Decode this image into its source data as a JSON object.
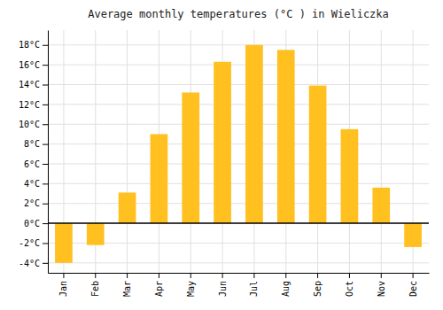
{
  "chart_data": {
    "type": "bar",
    "title": "Average monthly temperatures (°C ) in Wieliczka",
    "categories": [
      "Jan",
      "Feb",
      "Mar",
      "Apr",
      "May",
      "Jun",
      "Jul",
      "Aug",
      "Sep",
      "Oct",
      "Nov",
      "Dec"
    ],
    "values": [
      -4.0,
      -2.2,
      3.1,
      9.0,
      13.2,
      16.3,
      18.0,
      17.5,
      13.9,
      9.5,
      3.6,
      -2.4
    ],
    "color": "#FFC020",
    "ylim": [
      -5,
      19.5
    ],
    "yticks": [
      {
        "value": -4,
        "label": "-4°C"
      },
      {
        "value": -2,
        "label": "-2°C"
      },
      {
        "value": 0,
        "label": "0°C"
      },
      {
        "value": 2,
        "label": "2°C"
      },
      {
        "value": 4,
        "label": "4°C"
      },
      {
        "value": 6,
        "label": "6°C"
      },
      {
        "value": 8,
        "label": "8°C"
      },
      {
        "value": 10,
        "label": "10°C"
      },
      {
        "value": 12,
        "label": "12°C"
      },
      {
        "value": 14,
        "label": "14°C"
      },
      {
        "value": 16,
        "label": "16°C"
      },
      {
        "value": 18,
        "label": "18°C"
      }
    ],
    "grid": true
  }
}
